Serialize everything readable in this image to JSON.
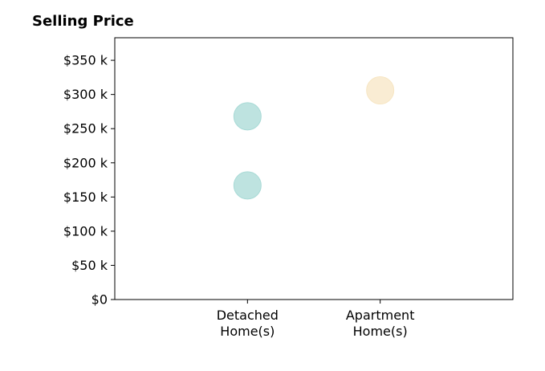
{
  "chart_data": {
    "type": "scatter",
    "title": "Selling Price",
    "xlabel": "",
    "ylabel": "",
    "categories": [
      [
        "Detached",
        "Home(s)"
      ],
      [
        "Apartment",
        "Home(s)"
      ]
    ],
    "points": [
      {
        "category": 0,
        "y": 268000,
        "color": "#a8dad6"
      },
      {
        "category": 0,
        "y": 167000,
        "color": "#a8dad6"
      },
      {
        "category": 1,
        "y": 306000,
        "color": "#f7e6c4"
      }
    ],
    "yticks": [
      {
        "value": 0,
        "label": "$0"
      },
      {
        "value": 50000,
        "label": "$50 k"
      },
      {
        "value": 100000,
        "label": "$100 k"
      },
      {
        "value": 150000,
        "label": "$150 k"
      },
      {
        "value": 200000,
        "label": "$200 k"
      },
      {
        "value": 250000,
        "label": "$250 k"
      },
      {
        "value": 300000,
        "label": "$300 k"
      },
      {
        "value": 350000,
        "label": "$350 k"
      }
    ],
    "ylim": [
      0,
      383000
    ],
    "xlim": [
      -1,
      2
    ],
    "grid": false,
    "legend": "none"
  }
}
